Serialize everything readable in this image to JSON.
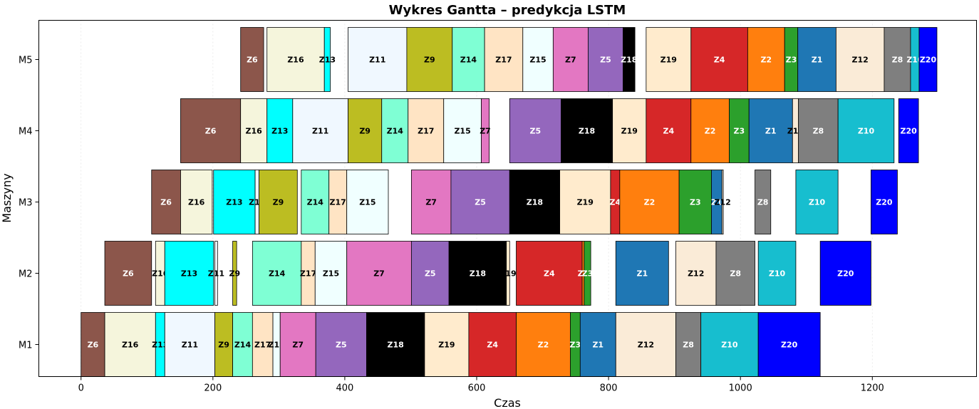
{
  "chart_data": {
    "type": "gantt",
    "title": "Wykres Gantta – predykcja LSTM",
    "xlabel": "Czas",
    "ylabel": "Maszyny",
    "xlim": [
      -64,
      1358
    ],
    "xticks": [
      0,
      200,
      400,
      600,
      800,
      1000,
      1200
    ],
    "machines": [
      "M1",
      "M2",
      "M3",
      "M4",
      "M5"
    ],
    "grid": "vertical",
    "colors": {
      "Z1": "#1f77b4",
      "Z2": "#ff7f0e",
      "Z3": "#2ca02c",
      "Z4": "#d62728",
      "Z5": "#9467bd",
      "Z6": "#8c564b",
      "Z7": "#e377c2",
      "Z8": "#7f7f7f",
      "Z9": "#bcbd22",
      "Z10": "#17becf",
      "Z11": "#f0f8ff",
      "Z12": "#faebd7",
      "Z13": "#00ffff",
      "Z14": "#7fffd4",
      "Z15": "#f0ffff",
      "Z16": "#f5f5dc",
      "Z17": "#ffe4c4",
      "Z18": "#000000",
      "Z19": "#ffebcd",
      "Z20": "#0000ff"
    },
    "dark_labels": [
      "Z1",
      "Z2",
      "Z3",
      "Z4",
      "Z5",
      "Z6",
      "Z8",
      "Z10",
      "Z18",
      "Z20"
    ],
    "tasks": [
      {
        "machine": "M1",
        "job": "Z6",
        "start": 0,
        "end": 36
      },
      {
        "machine": "M1",
        "job": "Z16",
        "start": 36,
        "end": 113
      },
      {
        "machine": "M1",
        "job": "Z13",
        "start": 113,
        "end": 127
      },
      {
        "machine": "M1",
        "job": "Z11",
        "start": 127,
        "end": 203
      },
      {
        "machine": "M1",
        "job": "Z9",
        "start": 203,
        "end": 230
      },
      {
        "machine": "M1",
        "job": "Z14",
        "start": 230,
        "end": 260
      },
      {
        "machine": "M1",
        "job": "Z17",
        "start": 260,
        "end": 291
      },
      {
        "machine": "M1",
        "job": "Z15",
        "start": 291,
        "end": 302
      },
      {
        "machine": "M1",
        "job": "Z7",
        "start": 302,
        "end": 356
      },
      {
        "machine": "M1",
        "job": "Z5",
        "start": 356,
        "end": 433
      },
      {
        "machine": "M1",
        "job": "Z18",
        "start": 433,
        "end": 521
      },
      {
        "machine": "M1",
        "job": "Z19",
        "start": 521,
        "end": 588
      },
      {
        "machine": "M1",
        "job": "Z4",
        "start": 588,
        "end": 660
      },
      {
        "machine": "M1",
        "job": "Z2",
        "start": 660,
        "end": 742
      },
      {
        "machine": "M1",
        "job": "Z3",
        "start": 742,
        "end": 757
      },
      {
        "machine": "M1",
        "job": "Z1",
        "start": 757,
        "end": 811
      },
      {
        "machine": "M1",
        "job": "Z12",
        "start": 811,
        "end": 902
      },
      {
        "machine": "M1",
        "job": "Z8",
        "start": 902,
        "end": 940
      },
      {
        "machine": "M1",
        "job": "Z10",
        "start": 940,
        "end": 1027
      },
      {
        "machine": "M1",
        "job": "Z20",
        "start": 1027,
        "end": 1121
      },
      {
        "machine": "M2",
        "job": "Z6",
        "start": 36,
        "end": 107
      },
      {
        "machine": "M2",
        "job": "Z16",
        "start": 113,
        "end": 127
      },
      {
        "machine": "M2",
        "job": "Z13",
        "start": 127,
        "end": 201
      },
      {
        "machine": "M2",
        "job": "Z11",
        "start": 203,
        "end": 207
      },
      {
        "machine": "M2",
        "job": "Z9",
        "start": 230,
        "end": 236
      },
      {
        "machine": "M2",
        "job": "Z14",
        "start": 260,
        "end": 334
      },
      {
        "machine": "M2",
        "job": "Z17",
        "start": 334,
        "end": 355
      },
      {
        "machine": "M2",
        "job": "Z15",
        "start": 355,
        "end": 403
      },
      {
        "machine": "M2",
        "job": "Z7",
        "start": 403,
        "end": 501
      },
      {
        "machine": "M2",
        "job": "Z5",
        "start": 501,
        "end": 558
      },
      {
        "machine": "M2",
        "job": "Z18",
        "start": 558,
        "end": 645
      },
      {
        "machine": "M2",
        "job": "Z19",
        "start": 645,
        "end": 650
      },
      {
        "machine": "M2",
        "job": "Z4",
        "start": 660,
        "end": 760
      },
      {
        "machine": "M2",
        "job": "Z2",
        "start": 760,
        "end": 763
      },
      {
        "machine": "M2",
        "job": "Z3",
        "start": 763,
        "end": 773
      },
      {
        "machine": "M2",
        "job": "Z1",
        "start": 811,
        "end": 891
      },
      {
        "machine": "M2",
        "job": "Z12",
        "start": 902,
        "end": 963
      },
      {
        "machine": "M2",
        "job": "Z8",
        "start": 963,
        "end": 1022
      },
      {
        "machine": "M2",
        "job": "Z10",
        "start": 1027,
        "end": 1084
      },
      {
        "machine": "M2",
        "job": "Z20",
        "start": 1121,
        "end": 1198
      },
      {
        "machine": "M3",
        "job": "Z6",
        "start": 107,
        "end": 151
      },
      {
        "machine": "M3",
        "job": "Z16",
        "start": 151,
        "end": 199
      },
      {
        "machine": "M3",
        "job": "Z13",
        "start": 201,
        "end": 264
      },
      {
        "machine": "M3",
        "job": "Z11",
        "start": 264,
        "end": 270
      },
      {
        "machine": "M3",
        "job": "Z9",
        "start": 270,
        "end": 328
      },
      {
        "machine": "M3",
        "job": "Z14",
        "start": 334,
        "end": 376
      },
      {
        "machine": "M3",
        "job": "Z17",
        "start": 376,
        "end": 403
      },
      {
        "machine": "M3",
        "job": "Z15",
        "start": 403,
        "end": 466
      },
      {
        "machine": "M3",
        "job": "Z7",
        "start": 501,
        "end": 561
      },
      {
        "machine": "M3",
        "job": "Z5",
        "start": 561,
        "end": 650
      },
      {
        "machine": "M3",
        "job": "Z18",
        "start": 650,
        "end": 726
      },
      {
        "machine": "M3",
        "job": "Z19",
        "start": 726,
        "end": 803
      },
      {
        "machine": "M3",
        "job": "Z4",
        "start": 803,
        "end": 817
      },
      {
        "machine": "M3",
        "job": "Z2",
        "start": 817,
        "end": 907
      },
      {
        "machine": "M3",
        "job": "Z3",
        "start": 907,
        "end": 956
      },
      {
        "machine": "M3",
        "job": "Z1",
        "start": 956,
        "end": 972
      },
      {
        "machine": "M3",
        "job": "Z12",
        "start": 972,
        "end": 974
      },
      {
        "machine": "M3",
        "job": "Z8",
        "start": 1022,
        "end": 1046
      },
      {
        "machine": "M3",
        "job": "Z10",
        "start": 1084,
        "end": 1148
      },
      {
        "machine": "M3",
        "job": "Z20",
        "start": 1198,
        "end": 1238
      },
      {
        "machine": "M4",
        "job": "Z6",
        "start": 151,
        "end": 242
      },
      {
        "machine": "M4",
        "job": "Z16",
        "start": 242,
        "end": 282
      },
      {
        "machine": "M4",
        "job": "Z13",
        "start": 282,
        "end": 321
      },
      {
        "machine": "M4",
        "job": "Z11",
        "start": 321,
        "end": 405
      },
      {
        "machine": "M4",
        "job": "Z9",
        "start": 405,
        "end": 456
      },
      {
        "machine": "M4",
        "job": "Z14",
        "start": 456,
        "end": 496
      },
      {
        "machine": "M4",
        "job": "Z17",
        "start": 496,
        "end": 550
      },
      {
        "machine": "M4",
        "job": "Z15",
        "start": 550,
        "end": 607
      },
      {
        "machine": "M4",
        "job": "Z7",
        "start": 607,
        "end": 619
      },
      {
        "machine": "M4",
        "job": "Z5",
        "start": 650,
        "end": 728
      },
      {
        "machine": "M4",
        "job": "Z18",
        "start": 728,
        "end": 806
      },
      {
        "machine": "M4",
        "job": "Z19",
        "start": 806,
        "end": 857
      },
      {
        "machine": "M4",
        "job": "Z4",
        "start": 857,
        "end": 925
      },
      {
        "machine": "M4",
        "job": "Z2",
        "start": 925,
        "end": 983
      },
      {
        "machine": "M4",
        "job": "Z3",
        "start": 983,
        "end": 1013
      },
      {
        "machine": "M4",
        "job": "Z1",
        "start": 1013,
        "end": 1079
      },
      {
        "machine": "M4",
        "job": "Z12",
        "start": 1079,
        "end": 1088
      },
      {
        "machine": "M4",
        "job": "Z8",
        "start": 1088,
        "end": 1148
      },
      {
        "machine": "M4",
        "job": "Z10",
        "start": 1148,
        "end": 1233
      },
      {
        "machine": "M4",
        "job": "Z20",
        "start": 1240,
        "end": 1270
      },
      {
        "machine": "M5",
        "job": "Z6",
        "start": 242,
        "end": 277
      },
      {
        "machine": "M5",
        "job": "Z16",
        "start": 282,
        "end": 369
      },
      {
        "machine": "M5",
        "job": "Z13",
        "start": 369,
        "end": 378
      },
      {
        "machine": "M5",
        "job": "Z11",
        "start": 405,
        "end": 494
      },
      {
        "machine": "M5",
        "job": "Z9",
        "start": 494,
        "end": 563
      },
      {
        "machine": "M5",
        "job": "Z14",
        "start": 563,
        "end": 612
      },
      {
        "machine": "M5",
        "job": "Z17",
        "start": 612,
        "end": 670
      },
      {
        "machine": "M5",
        "job": "Z15",
        "start": 670,
        "end": 716
      },
      {
        "machine": "M5",
        "job": "Z7",
        "start": 716,
        "end": 769
      },
      {
        "machine": "M5",
        "job": "Z5",
        "start": 769,
        "end": 822
      },
      {
        "machine": "M5",
        "job": "Z18",
        "start": 822,
        "end": 840
      },
      {
        "machine": "M5",
        "job": "Z19",
        "start": 857,
        "end": 925
      },
      {
        "machine": "M5",
        "job": "Z4",
        "start": 925,
        "end": 1011
      },
      {
        "machine": "M5",
        "job": "Z2",
        "start": 1011,
        "end": 1067
      },
      {
        "machine": "M5",
        "job": "Z3",
        "start": 1067,
        "end": 1087
      },
      {
        "machine": "M5",
        "job": "Z1",
        "start": 1087,
        "end": 1145
      },
      {
        "machine": "M5",
        "job": "Z12",
        "start": 1145,
        "end": 1218
      },
      {
        "machine": "M5",
        "job": "Z8",
        "start": 1218,
        "end": 1258
      },
      {
        "machine": "M5",
        "job": "Z10",
        "start": 1258,
        "end": 1271
      },
      {
        "machine": "M5",
        "job": "Z20",
        "start": 1271,
        "end": 1298
      }
    ]
  }
}
